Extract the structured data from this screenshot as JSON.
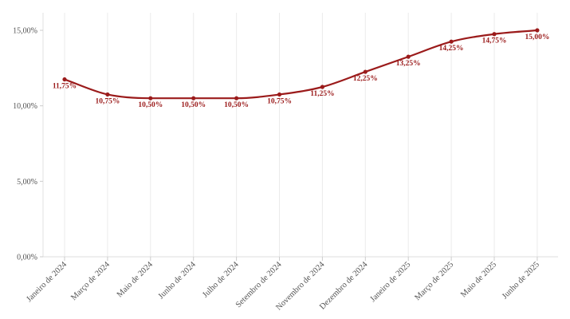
{
  "chart_data": {
    "type": "line",
    "title": "",
    "xlabel": "",
    "ylabel": "",
    "ylim": [
      0,
      15
    ],
    "grid": "vertical",
    "color": "#9b1b1b",
    "categories": [
      "Janeiro de 2024",
      "Março de 2024",
      "Maio de 2024",
      "Junho de 2024",
      "Julho de 2024",
      "Setembro de 2024",
      "Novembro de 2024",
      "Dezembro de 2024",
      "Janeiro de 2025",
      "Março de 2025",
      "Maio de 2025",
      "Junho de 2025"
    ],
    "values": [
      11.75,
      10.75,
      10.5,
      10.5,
      10.5,
      10.75,
      11.25,
      12.25,
      13.25,
      14.25,
      14.75,
      15.0
    ],
    "value_labels": [
      "11,75%",
      "10,75%",
      "10,50%",
      "10,50%",
      "10,50%",
      "10,75%",
      "11,25%",
      "12,25%",
      "13,25%",
      "14,25%",
      "14,75%",
      "15,00%"
    ],
    "y_ticks": [
      0,
      5,
      10,
      15
    ],
    "y_tick_labels": [
      "0,00%",
      "5,00%",
      "10,00%",
      "15,00%"
    ]
  }
}
